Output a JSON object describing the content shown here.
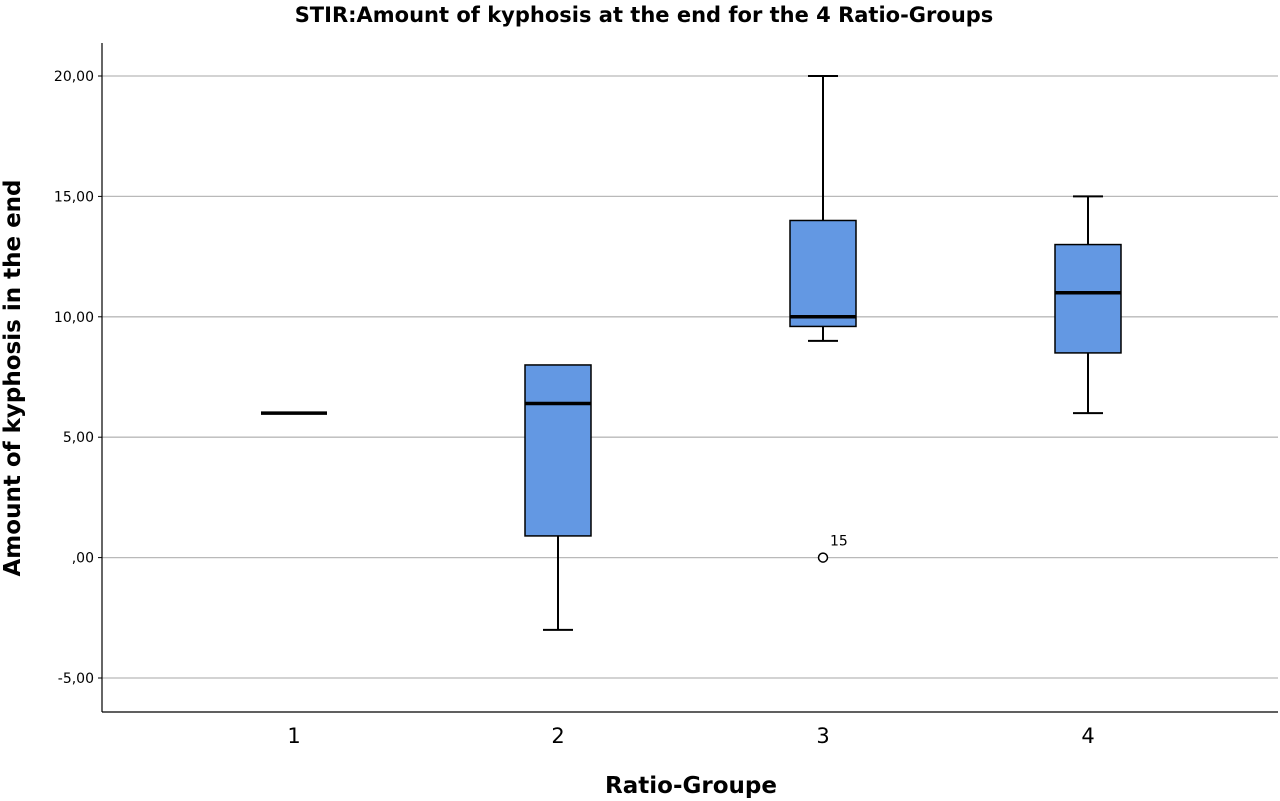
{
  "chart_data": {
    "type": "boxplot",
    "title": "STIR:Amount of kyphosis at the end for the 4 Ratio-Groups",
    "xlabel": "Ratio-Groupe",
    "ylabel": "Amount of kyphosis in the end",
    "categories": [
      "1",
      "2",
      "3",
      "4"
    ],
    "ylim": [
      -6.4,
      21.4
    ],
    "yticks": [
      -5,
      0,
      5,
      10,
      15,
      20
    ],
    "ytick_labels": [
      "-5,00",
      ",00",
      "5,00",
      "10,00",
      "15,00",
      "20,00"
    ],
    "grid": true,
    "box_color": "#6398e3",
    "boxes": [
      {
        "category": "1",
        "min": 6,
        "q1": 6,
        "median": 6,
        "q3": 6,
        "max": 6
      },
      {
        "category": "2",
        "min": -3,
        "q1": 0.9,
        "median": 6.4,
        "q3": 8,
        "max": 8
      },
      {
        "category": "3",
        "min": 9,
        "q1": 9.6,
        "median": 10,
        "q3": 14,
        "max": 20
      },
      {
        "category": "4",
        "min": 6,
        "q1": 8.5,
        "median": 11,
        "q3": 13,
        "max": 15
      }
    ],
    "outliers": [
      {
        "category": "3",
        "value": 0,
        "label": "15"
      }
    ]
  }
}
